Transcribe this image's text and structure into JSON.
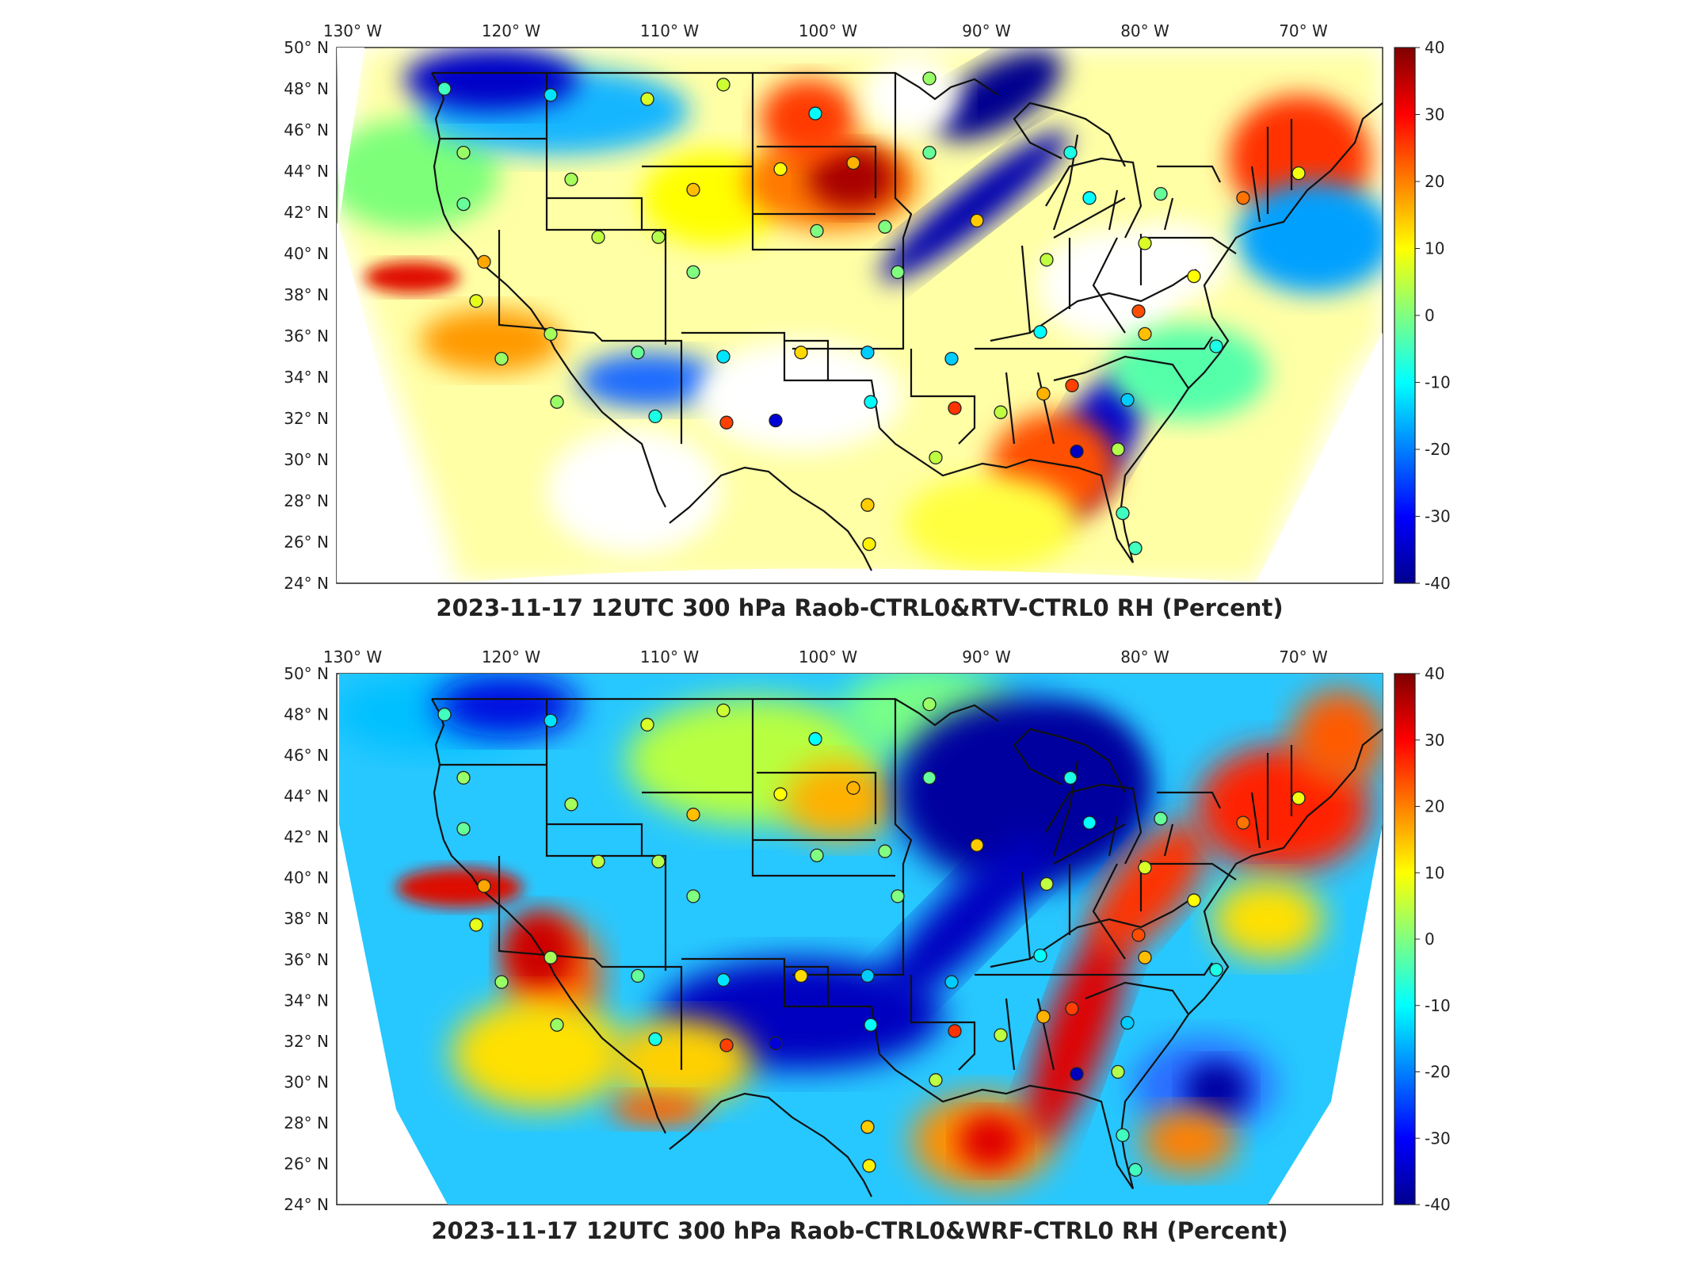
{
  "chart_data": [
    {
      "type": "heatmap",
      "title": "2023-11-17 12UTC 300 hPa Raob-CTRL0&RTV-CTRL0 RH (Percent)",
      "x_ticks": [
        "130° W",
        "120° W",
        "110° W",
        "100° W",
        "90° W",
        "80° W",
        "70° W"
      ],
      "y_ticks": [
        "50° N",
        "48° N",
        "46° N",
        "44° N",
        "42° N",
        "40° N",
        "38° N",
        "36° N",
        "34° N",
        "32° N",
        "30° N",
        "28° N",
        "26° N",
        "24° N"
      ],
      "colorbar": {
        "ticks": [
          "40",
          "30",
          "20",
          "10",
          "0",
          "-10",
          "-20",
          "-30",
          "-40"
        ],
        "range": [
          -40,
          40
        ],
        "colormap": "jet"
      },
      "xlim": [
        -131,
        -65
      ],
      "ylim": [
        24,
        50
      ],
      "stations": [
        {
          "lon": -124.2,
          "lat": 48.0,
          "v": -5
        },
        {
          "lon": -117.5,
          "lat": 47.7,
          "v": -12
        },
        {
          "lon": -111.4,
          "lat": 47.5,
          "v": 7
        },
        {
          "lon": -106.6,
          "lat": 48.2,
          "v": 6
        },
        {
          "lon": -100.8,
          "lat": 46.8,
          "v": -10
        },
        {
          "lon": -93.6,
          "lat": 48.5,
          "v": 2
        },
        {
          "lon": -123.0,
          "lat": 44.9,
          "v": 2
        },
        {
          "lon": -116.2,
          "lat": 43.6,
          "v": 3
        },
        {
          "lon": -108.5,
          "lat": 43.1,
          "v": 15
        },
        {
          "lon": -103.0,
          "lat": 44.1,
          "v": 10
        },
        {
          "lon": -98.4,
          "lat": 44.4,
          "v": 16
        },
        {
          "lon": -93.6,
          "lat": 44.9,
          "v": -2
        },
        {
          "lon": -84.7,
          "lat": 44.9,
          "v": -8
        },
        {
          "lon": -123.0,
          "lat": 42.4,
          "v": -2
        },
        {
          "lon": -114.5,
          "lat": 40.8,
          "v": 5
        },
        {
          "lon": -110.7,
          "lat": 40.8,
          "v": 4
        },
        {
          "lon": -100.7,
          "lat": 41.1,
          "v": 0
        },
        {
          "lon": -96.4,
          "lat": 41.3,
          "v": 0
        },
        {
          "lon": -90.6,
          "lat": 41.6,
          "v": 14
        },
        {
          "lon": -83.5,
          "lat": 42.7,
          "v": -10
        },
        {
          "lon": -79.0,
          "lat": 42.9,
          "v": -2
        },
        {
          "lon": -73.8,
          "lat": 42.7,
          "v": 21
        },
        {
          "lon": -70.3,
          "lat": 43.9,
          "v": 9
        },
        {
          "lon": -121.7,
          "lat": 39.6,
          "v": 17
        },
        {
          "lon": -108.5,
          "lat": 39.1,
          "v": 0
        },
        {
          "lon": -95.6,
          "lat": 39.1,
          "v": 0
        },
        {
          "lon": -86.2,
          "lat": 39.7,
          "v": 5
        },
        {
          "lon": -80.0,
          "lat": 40.5,
          "v": 7
        },
        {
          "lon": -76.9,
          "lat": 38.9,
          "v": 10
        },
        {
          "lon": -122.2,
          "lat": 37.7,
          "v": 8
        },
        {
          "lon": -117.5,
          "lat": 36.1,
          "v": 3
        },
        {
          "lon": -112.0,
          "lat": 35.2,
          "v": -2
        },
        {
          "lon": -106.6,
          "lat": 35.0,
          "v": -12
        },
        {
          "lon": -101.7,
          "lat": 35.2,
          "v": 13
        },
        {
          "lon": -97.5,
          "lat": 35.2,
          "v": -14
        },
        {
          "lon": -92.2,
          "lat": 34.9,
          "v": -14
        },
        {
          "lon": -86.6,
          "lat": 36.2,
          "v": -10
        },
        {
          "lon": -80.4,
          "lat": 37.2,
          "v": 24
        },
        {
          "lon": -80.0,
          "lat": 36.1,
          "v": 15
        },
        {
          "lon": -75.5,
          "lat": 35.5,
          "v": -8
        },
        {
          "lon": -120.6,
          "lat": 34.9,
          "v": 2
        },
        {
          "lon": -117.1,
          "lat": 32.8,
          "v": 2
        },
        {
          "lon": -110.9,
          "lat": 32.1,
          "v": -8
        },
        {
          "lon": -106.4,
          "lat": 31.8,
          "v": 25
        },
        {
          "lon": -103.3,
          "lat": 31.9,
          "v": -33
        },
        {
          "lon": -97.3,
          "lat": 32.8,
          "v": -10
        },
        {
          "lon": -92.0,
          "lat": 32.5,
          "v": 26
        },
        {
          "lon": -89.1,
          "lat": 32.3,
          "v": 5
        },
        {
          "lon": -86.4,
          "lat": 33.2,
          "v": 16
        },
        {
          "lon": -84.6,
          "lat": 33.6,
          "v": 25
        },
        {
          "lon": -81.1,
          "lat": 32.9,
          "v": -14
        },
        {
          "lon": -93.2,
          "lat": 30.1,
          "v": 5
        },
        {
          "lon": -84.3,
          "lat": 30.4,
          "v": -35
        },
        {
          "lon": -81.7,
          "lat": 30.5,
          "v": 4
        },
        {
          "lon": -97.5,
          "lat": 27.8,
          "v": 14
        },
        {
          "lon": -97.4,
          "lat": 25.9,
          "v": 11
        },
        {
          "lon": -80.6,
          "lat": 25.7,
          "v": -5
        },
        {
          "lon": -81.4,
          "lat": 27.4,
          "v": -5
        }
      ]
    },
    {
      "type": "heatmap",
      "title": "2023-11-17 12UTC 300 hPa Raob-CTRL0&WRF-CTRL0 RH (Percent)",
      "x_ticks": [
        "130° W",
        "120° W",
        "110° W",
        "100° W",
        "90° W",
        "80° W",
        "70° W"
      ],
      "y_ticks": [
        "50° N",
        "48° N",
        "46° N",
        "44° N",
        "42° N",
        "40° N",
        "38° N",
        "36° N",
        "34° N",
        "32° N",
        "30° N",
        "28° N",
        "26° N",
        "24° N"
      ],
      "colorbar": {
        "ticks": [
          "40",
          "30",
          "20",
          "10",
          "0",
          "-10",
          "-20",
          "-30",
          "-40"
        ],
        "range": [
          -40,
          40
        ],
        "colormap": "jet"
      },
      "xlim": [
        -131,
        -65
      ],
      "ylim": [
        24,
        50
      ]
    }
  ]
}
